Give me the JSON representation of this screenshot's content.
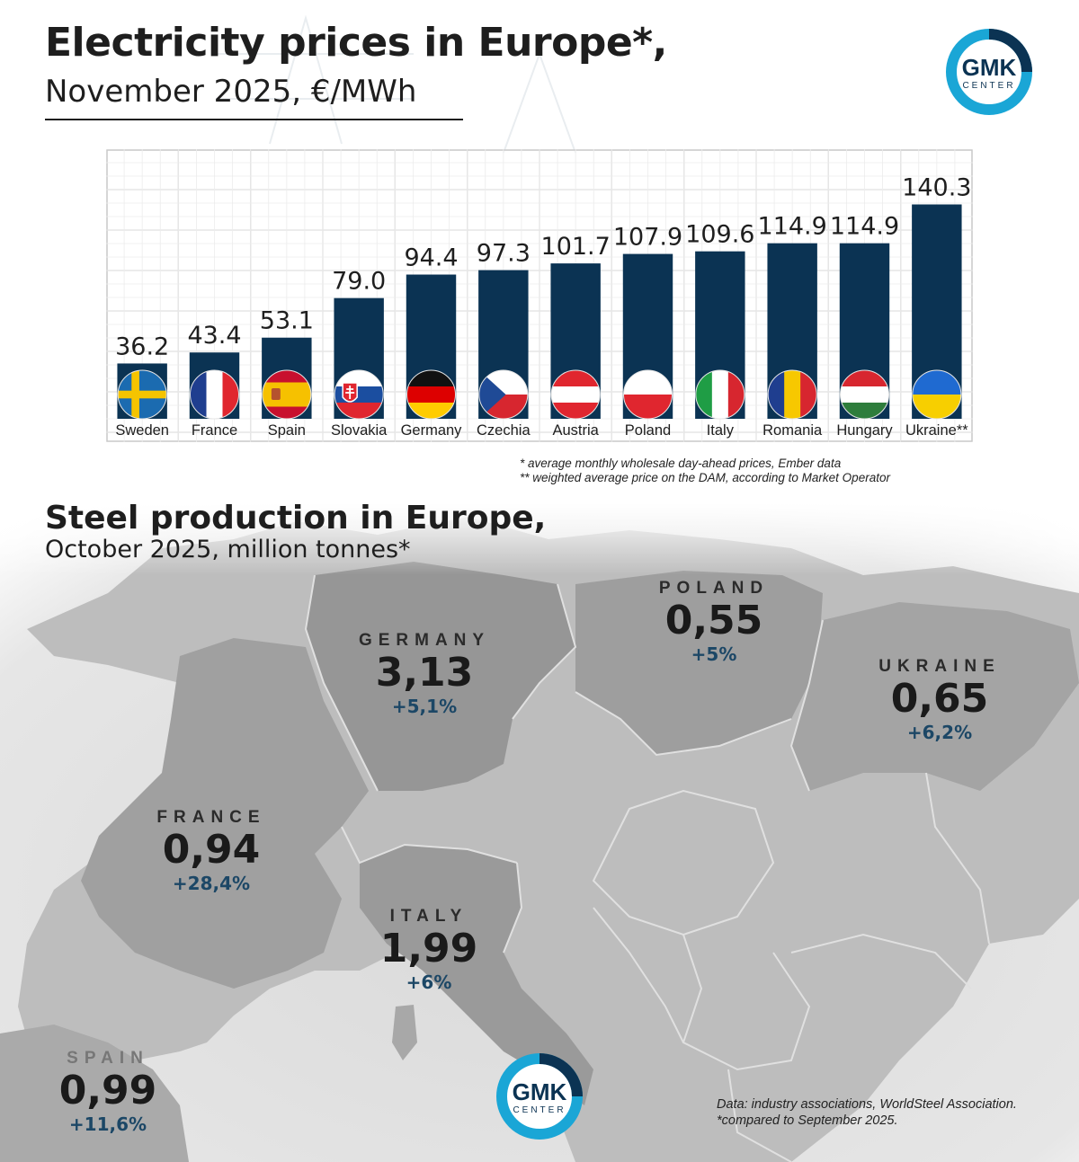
{
  "header": {
    "title": "Electricity prices in Europe*,",
    "subtitle": "November 2025, €/MWh"
  },
  "logo": {
    "text": "GMK",
    "subtext": "CENTER",
    "colors": {
      "ring": "#0b3353",
      "accent": "#1aa6d6"
    }
  },
  "chart_data": {
    "type": "bar",
    "title": "Electricity prices in Europe*,",
    "subtitle": "November 2025, €/MWh",
    "categories": [
      "Sweden",
      "France",
      "Spain",
      "Slovakia",
      "Germany",
      "Czechia",
      "Austria",
      "Poland",
      "Italy",
      "Romania",
      "Hungary",
      "Ukraine**"
    ],
    "values": [
      36.2,
      43.4,
      53.1,
      79.0,
      94.4,
      97.3,
      101.7,
      107.9,
      109.6,
      114.9,
      114.9,
      140.3
    ],
    "value_labels": [
      "36.2",
      "43.4",
      "53.1",
      "79.0",
      "94.4",
      "97.3",
      "101.7",
      "107.9",
      "109.6",
      "114.9",
      "114.9",
      "140.3"
    ],
    "flags": [
      "sweden-flag-icon",
      "france-flag-icon",
      "spain-flag-icon",
      "slovakia-flag-icon",
      "germany-flag-icon",
      "czechia-flag-icon",
      "austria-flag-icon",
      "poland-flag-icon",
      "italy-flag-icon",
      "romania-flag-icon",
      "hungary-flag-icon",
      "ukraine-flag-icon"
    ],
    "ylim": [
      0,
      160
    ],
    "grid": true,
    "bar_color": "#0b3353"
  },
  "notes": {
    "line1": "* average monthly wholesale day-ahead prices, Ember data",
    "line2": "** weighted average price on the DAM, according to Market Operator"
  },
  "steel": {
    "title": "Steel production in Europe,",
    "subtitle": "October 2025, million tonnes*",
    "countries": [
      {
        "name": "POLAND",
        "value": "0,55",
        "change": "+5%"
      },
      {
        "name": "GERMANY",
        "value": "3,13",
        "change": "+5,1%"
      },
      {
        "name": "UKRAINE",
        "value": "0,65",
        "change": "+6,2%"
      },
      {
        "name": "FRANCE",
        "value": "0,94",
        "change": "+28,4%"
      },
      {
        "name": "ITALY",
        "value": "1,99",
        "change": "+6%"
      },
      {
        "name": "SPAIN",
        "value": "0,99",
        "change": "+11,6%"
      }
    ],
    "source_line1": "Data: industry associations, WorldSteel Association.",
    "source_line2": "*compared to September 2025."
  }
}
